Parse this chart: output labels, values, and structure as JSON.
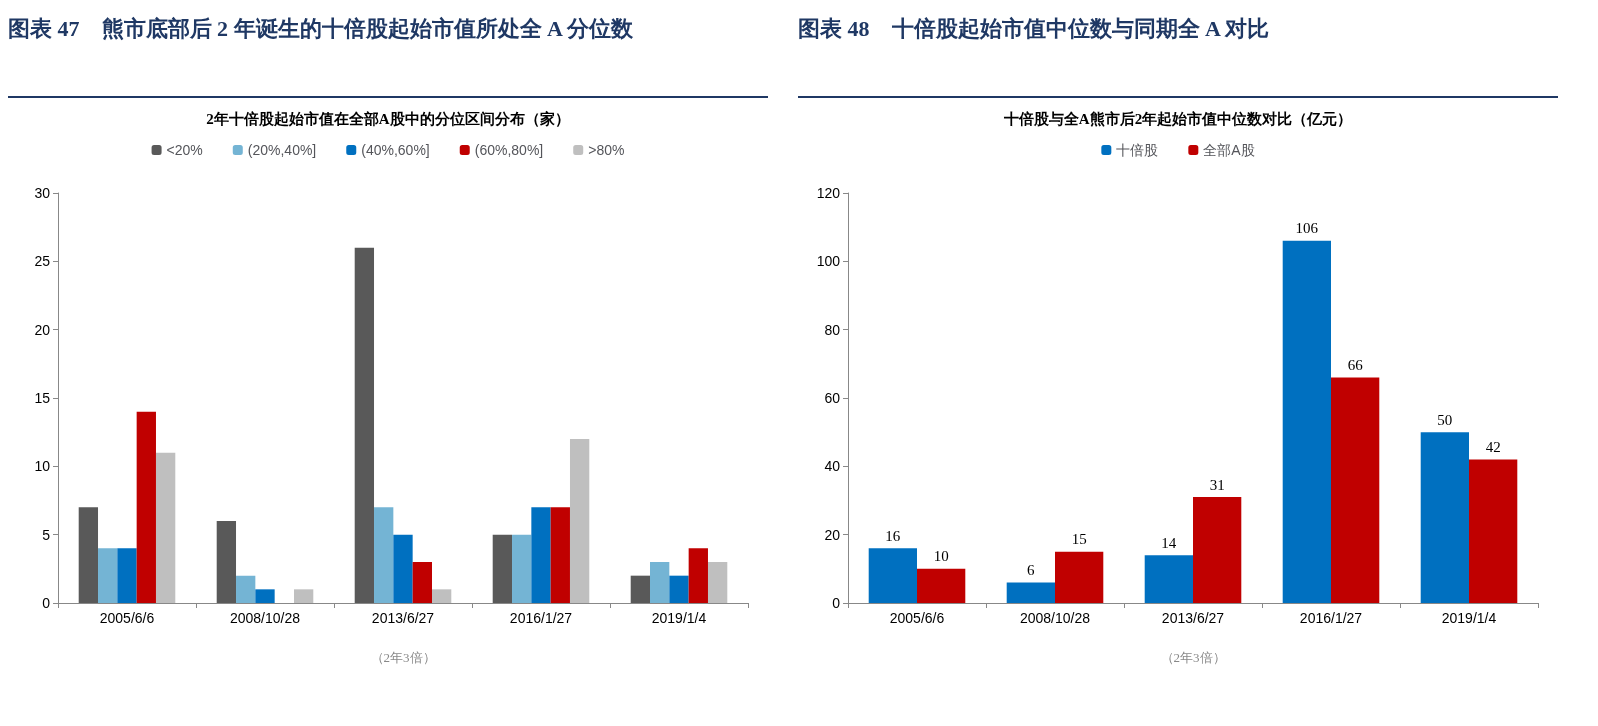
{
  "chart_data": [
    {
      "type": "bar",
      "title": "图表 47　熊市底部后 2 年诞生的十倍股起始市值所处全 A 分位数",
      "subtitle": "2年十倍股起始市值在全部A股中的分位区间分布（家）",
      "xlabel": "（2年3倍）",
      "categories": [
        "2005/6/6",
        "2008/10/28",
        "2013/6/27",
        "2016/1/27",
        "2019/1/4"
      ],
      "series": [
        {
          "name": "<20%",
          "color": "#595959",
          "values": [
            7,
            6,
            26,
            5,
            2
          ]
        },
        {
          "name": "(20%,40%]",
          "color": "#74b4d4",
          "values": [
            4,
            2,
            7,
            5,
            3
          ]
        },
        {
          "name": "(40%,60%]",
          "color": "#0070c0",
          "values": [
            4,
            1,
            5,
            7,
            2
          ]
        },
        {
          "name": "(60%,80%]",
          "color": "#c00000",
          "values": [
            14,
            0,
            3,
            7,
            4
          ]
        },
        {
          "name": ">80%",
          "color": "#bfbfbf",
          "values": [
            11,
            1,
            1,
            12,
            3
          ]
        }
      ],
      "ylim": [
        0,
        30
      ],
      "yticks": [
        0,
        5,
        10,
        15,
        20,
        25,
        30
      ],
      "grid": false,
      "legend": "top"
    },
    {
      "type": "bar",
      "title": "图表 48　十倍股起始市值中位数与同期全 A 对比",
      "subtitle": "十倍股与全A熊市后2年起始市值中位数对比（亿元）",
      "xlabel": "（2年3倍）",
      "categories": [
        "2005/6/6",
        "2008/10/28",
        "2013/6/27",
        "2016/1/27",
        "2019/1/4"
      ],
      "series": [
        {
          "name": "十倍股",
          "color": "#0070c0",
          "values": [
            16,
            6,
            14,
            106,
            50
          ]
        },
        {
          "name": "全部A股",
          "color": "#c00000",
          "values": [
            10,
            15,
            31,
            66,
            42
          ]
        }
      ],
      "ylim": [
        0,
        120
      ],
      "yticks": [
        0,
        20,
        40,
        60,
        80,
        100,
        120
      ],
      "grid": false,
      "legend": "top",
      "data_labels": true
    }
  ]
}
